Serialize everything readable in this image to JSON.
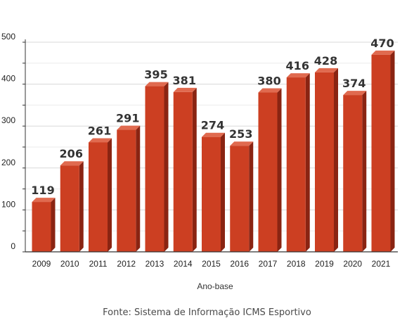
{
  "chart_data": {
    "type": "bar",
    "categories": [
      "2009",
      "2010",
      "2011",
      "2012",
      "2013",
      "2014",
      "2015",
      "2016",
      "2017",
      "2018",
      "2019",
      "2020",
      "2021"
    ],
    "values": [
      119,
      206,
      261,
      291,
      395,
      381,
      274,
      253,
      380,
      416,
      428,
      374,
      470
    ],
    "xlabel": "Ano-base",
    "ylabel": "",
    "ylim": [
      0,
      500
    ],
    "yticks": [
      0,
      100,
      200,
      300,
      400,
      500
    ],
    "grid": true,
    "bar_color": "#cc3f22",
    "bar_top_color": "#e06a4f",
    "bar_side_color": "#8a2412"
  },
  "source": "Fonte: Sistema de Informação ICMS Esportivo"
}
